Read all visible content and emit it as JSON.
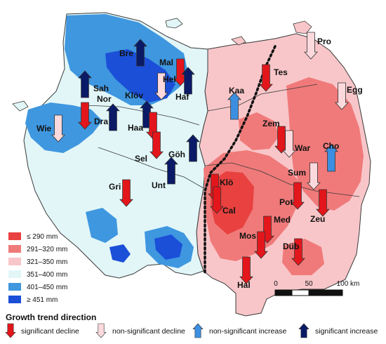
{
  "precipitation_legend": {
    "classes": [
      {
        "label": "≤ 290 mm",
        "color": "#e8413f"
      },
      {
        "label": "291–320 mm",
        "color": "#f07a7a"
      },
      {
        "label": "321–350 mm",
        "color": "#f8c6c9"
      },
      {
        "label": "351–400 mm",
        "color": "#e2f6f8"
      },
      {
        "label": "401–450 mm",
        "color": "#3f97df"
      },
      {
        "label": "≥ 451 mm",
        "color": "#1b4fd8"
      }
    ]
  },
  "scale_bar": {
    "tick_0": "0",
    "tick_50": "50",
    "tick_100": "100 km"
  },
  "trend_legend": {
    "title": "Growth trend direction",
    "items": [
      {
        "key": "sig_decline",
        "label": "significant decline",
        "color": "#e3161b",
        "direction": "down"
      },
      {
        "key": "nonsig_decline",
        "label": "non-significant decline",
        "color": "#fbd9dc",
        "direction": "down"
      },
      {
        "key": "nonsig_increase",
        "label": "non-significant increase",
        "color": "#3c8fe0",
        "direction": "up"
      },
      {
        "key": "sig_increase",
        "label": "significant increase",
        "color": "#0a1a66",
        "direction": "up"
      }
    ]
  },
  "sites": [
    {
      "name": "Bre",
      "trend": "sig_increase"
    },
    {
      "name": "Mal",
      "trend": "sig_decline"
    },
    {
      "name": "Hel",
      "trend": "nonsig_decline"
    },
    {
      "name": "Haf",
      "trend": "sig_increase"
    },
    {
      "name": "Sah",
      "trend": "sig_increase"
    },
    {
      "name": "Nor",
      "trend": "sig_decline"
    },
    {
      "name": "Dra",
      "trend": "sig_increase"
    },
    {
      "name": "Klöv",
      "trend": "sig_increase"
    },
    {
      "name": "Haa",
      "trend": "sig_decline"
    },
    {
      "name": "Wie",
      "trend": "nonsig_decline"
    },
    {
      "name": "Sel",
      "trend": "sig_decline"
    },
    {
      "name": "Göh",
      "trend": "sig_increase"
    },
    {
      "name": "Unt",
      "trend": "sig_increase"
    },
    {
      "name": "Gri",
      "trend": "sig_decline"
    },
    {
      "name": "Pro",
      "trend": "nonsig_decline"
    },
    {
      "name": "Tes",
      "trend": "sig_decline"
    },
    {
      "name": "Kaa",
      "trend": "nonsig_increase"
    },
    {
      "name": "Egg",
      "trend": "nonsig_decline"
    },
    {
      "name": "Zem",
      "trend": "sig_decline"
    },
    {
      "name": "War",
      "trend": "nonsig_decline"
    },
    {
      "name": "Cho",
      "trend": "nonsig_increase"
    },
    {
      "name": "Sum",
      "trend": "nonsig_decline"
    },
    {
      "name": "Klö",
      "trend": "sig_decline"
    },
    {
      "name": "Cal",
      "trend": "sig_decline"
    },
    {
      "name": "Pot",
      "trend": "sig_decline"
    },
    {
      "name": "Zeu",
      "trend": "sig_decline"
    },
    {
      "name": "Med",
      "trend": "sig_decline"
    },
    {
      "name": "Mos",
      "trend": "sig_decline"
    },
    {
      "name": "Düb",
      "trend": "sig_decline"
    },
    {
      "name": "Hal",
      "trend": "sig_decline"
    }
  ]
}
